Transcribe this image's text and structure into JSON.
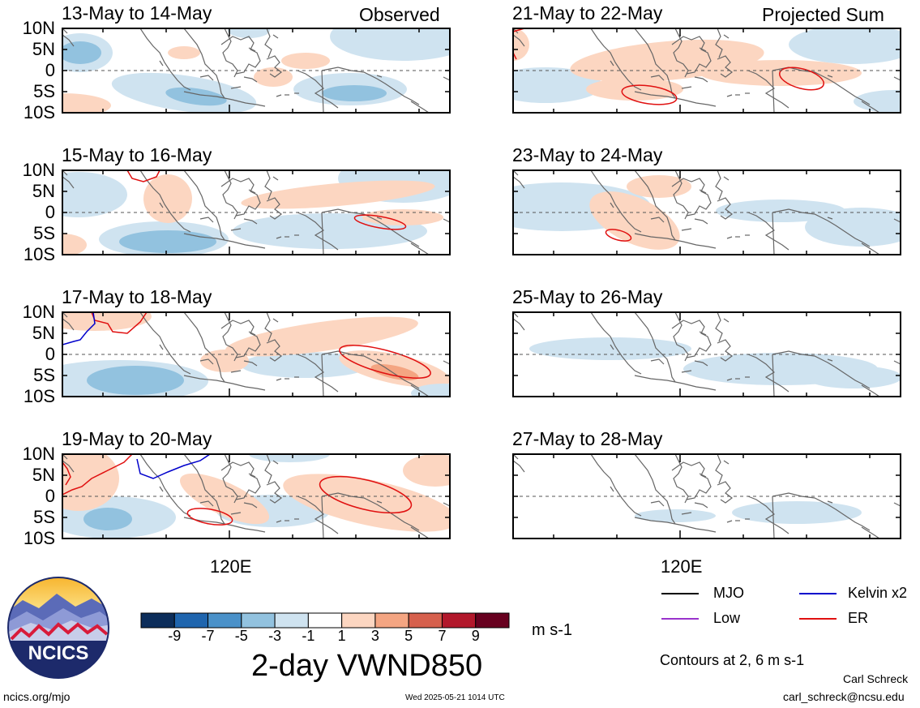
{
  "panel_left_label": "Observed",
  "panel_right_label": "Projected Sum",
  "panels_left": [
    {
      "title": "13-May to 14-May"
    },
    {
      "title": "15-May to 16-May"
    },
    {
      "title": "17-May to 18-May"
    },
    {
      "title": "19-May to 20-May"
    }
  ],
  "panels_right": [
    {
      "title": "21-May to 22-May"
    },
    {
      "title": "23-May to 24-May"
    },
    {
      "title": "25-May to 26-May"
    },
    {
      "title": "27-May to 28-May"
    }
  ],
  "y_ticks": [
    "10N",
    "5N",
    "0",
    "5S",
    "10S"
  ],
  "x_tick": "120E",
  "colorbar": {
    "ticks": [
      "-9",
      "-7",
      "-5",
      "-3",
      "-1",
      "1",
      "3",
      "5",
      "7",
      "9"
    ],
    "units": "m s-1",
    "colors": [
      "#0c2d5a",
      "#1f65ae",
      "#4a91c9",
      "#92c2df",
      "#cfe3f0",
      "#ffffff",
      "#fcd6c1",
      "#f4a582",
      "#d6604d",
      "#b2182b",
      "#67001f"
    ]
  },
  "main_title": "2-day VWND850",
  "legend": {
    "items": [
      {
        "label": "MJO",
        "color": "#000000"
      },
      {
        "label": "Kelvin x2",
        "color": "#0000cc"
      },
      {
        "label": "Low",
        "color": "#9933cc"
      },
      {
        "label": "ER",
        "color": "#e01010"
      }
    ],
    "contours_note": "Contours at 2, 6 m s-1"
  },
  "logo_text": "NCICS",
  "footer": {
    "url": "ncics.org/mjo",
    "timestamp": "Wed 2025-05-21 1014 UTC",
    "author": "Carl Schreck",
    "email": "carl_schreck@ncsu.edu"
  }
}
